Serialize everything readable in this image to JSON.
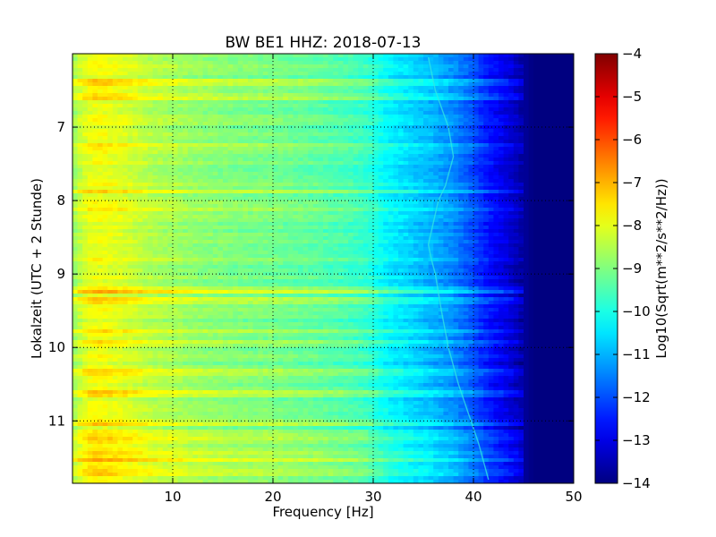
{
  "chart_data": {
    "type": "heatmap",
    "title": "BW BE1 HHZ: 2018-07-13",
    "xlabel": "Frequency [Hz]",
    "ylabel": "Lokalzeit (UTC + 2 Stunde)",
    "xlim": [
      0,
      50
    ],
    "ylim": [
      11.85,
      6.0
    ],
    "x_ticks": [
      "10",
      "20",
      "30",
      "40",
      "50"
    ],
    "x_tick_values": [
      10,
      20,
      30,
      40,
      50
    ],
    "y_ticks": [
      "7",
      "8",
      "9",
      "10",
      "11"
    ],
    "y_tick_values": [
      7,
      8,
      9,
      10,
      11
    ],
    "grid": true,
    "colorscale": "jet",
    "colorbar": {
      "label": "Log10(Sqrt(m**2/s**2/Hz))",
      "range": [
        -14,
        -4
      ],
      "ticks": [
        "−4",
        "−5",
        "−6",
        "−7",
        "−8",
        "−9",
        "−10",
        "−11",
        "−12",
        "−13",
        "−14"
      ],
      "tick_values": [
        -4,
        -5,
        -6,
        -7,
        -8,
        -9,
        -10,
        -11,
        -12,
        -13,
        -14
      ]
    },
    "frequency_profile": {
      "frequency_hz": [
        0,
        1,
        2,
        3,
        5,
        8,
        12,
        16,
        20,
        24,
        27,
        29,
        30,
        31,
        32,
        34,
        36,
        38,
        40,
        41,
        42,
        43,
        44,
        45,
        46,
        50
      ],
      "level": [
        -8.8,
        -8.2,
        -7.9,
        -7.9,
        -8.1,
        -8.5,
        -8.8,
        -9.0,
        -9.1,
        -9.3,
        -9.5,
        -9.7,
        -9.9,
        -10.2,
        -10.4,
        -10.7,
        -11.0,
        -11.4,
        -12.0,
        -12.4,
        -12.7,
        -13.0,
        -13.3,
        -13.7,
        -14.0,
        -14.0
      ]
    },
    "bright_time_bands": [
      6.35,
      6.55,
      7.22,
      7.85,
      8.1,
      9.18,
      9.22,
      9.32,
      9.75,
      9.9,
      10.32,
      10.6,
      11.0,
      11.15,
      11.25,
      11.4,
      11.5,
      11.55,
      11.63,
      11.7
    ],
    "spectral_line": {
      "time": [
        6.05,
        6.5,
        7.0,
        7.4,
        7.8,
        8.0,
        8.3,
        8.6,
        8.8,
        9.0,
        9.5,
        10.0,
        10.5,
        10.9,
        11.3,
        11.8
      ],
      "frequency_hz": [
        35.5,
        36.2,
        37.5,
        38.0,
        37.2,
        36.5,
        36.0,
        35.5,
        35.8,
        36.2,
        36.8,
        37.5,
        38.5,
        39.5,
        40.5,
        41.5
      ]
    }
  }
}
